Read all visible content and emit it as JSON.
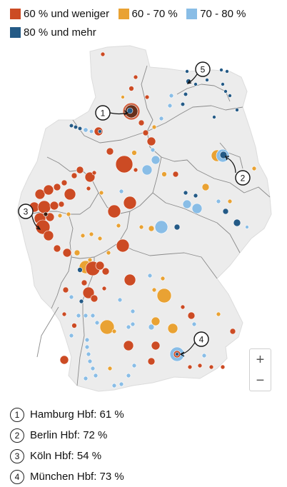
{
  "legend": [
    {
      "label": "60 % und weniger",
      "color": "#cc4b24"
    },
    {
      "label": "60 - 70 %",
      "color": "#e9a233"
    },
    {
      "label": "70 - 80 %",
      "color": "#89bde6"
    },
    {
      "label": "80 % und mehr",
      "color": "#245a86"
    }
  ],
  "map": {
    "base_color": "#ececec",
    "border_color": "#8a8a8a",
    "markers": [
      {
        "id": "1",
        "label": "1"
      },
      {
        "id": "2",
        "label": "2"
      },
      {
        "id": "3",
        "label": "3"
      },
      {
        "id": "4",
        "label": "4"
      },
      {
        "id": "5",
        "label": "5"
      }
    ]
  },
  "zoom": {
    "in": "+",
    "out": "−"
  },
  "annotations": [
    {
      "num": "1",
      "text": "Hamburg Hbf: 61 %"
    },
    {
      "num": "2",
      "text": "Berlin Hbf: 72 %"
    },
    {
      "num": "3",
      "text": "Köln Hbf: 54 %"
    },
    {
      "num": "4",
      "text": "München Hbf: 73 %"
    }
  ]
}
